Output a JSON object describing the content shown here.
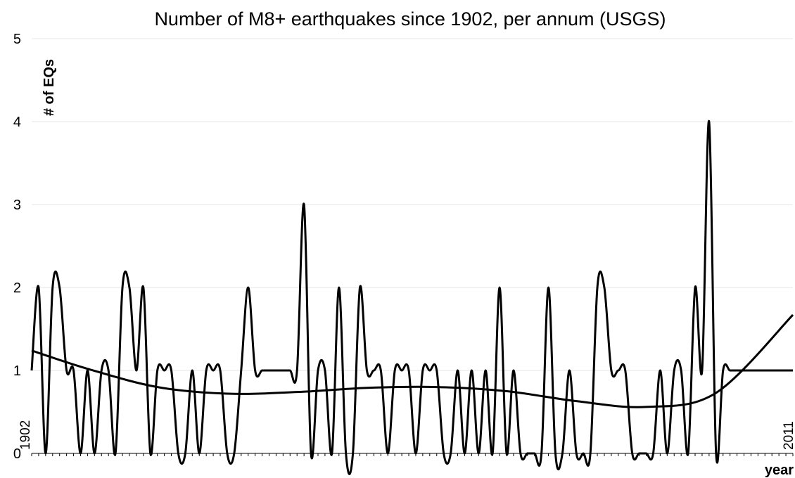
{
  "chart_data": {
    "type": "line",
    "title": "Number of M8+ earthquakes since 1902, per annum (USGS)",
    "xlabel": "year",
    "ylabel": "# of EQs",
    "x_start_label": "1902",
    "x_end_label": "2011",
    "xlim": [
      1902,
      2011
    ],
    "ylim": [
      0,
      5
    ],
    "yticks": [
      "0",
      "1",
      "2",
      "3",
      "4",
      "5"
    ],
    "grid": true,
    "legend": "none",
    "colors": {
      "series": "#000000",
      "trend": "#000000",
      "grid": "#e6e6e6"
    },
    "series": [
      {
        "x": [
          1902,
          1903,
          1904,
          1905,
          1906,
          1907,
          1908,
          1909,
          1910,
          1911,
          1912,
          1913,
          1914,
          1915,
          1916,
          1917,
          1918,
          1919,
          1920,
          1921,
          1922,
          1923,
          1924,
          1925,
          1926,
          1927,
          1928,
          1929,
          1930,
          1931,
          1932,
          1933,
          1934,
          1935,
          1936,
          1937,
          1938,
          1939,
          1940,
          1941,
          1942,
          1943,
          1944,
          1945,
          1946,
          1947,
          1948,
          1949,
          1950,
          1951,
          1952,
          1953,
          1954,
          1955,
          1956,
          1957,
          1958,
          1959,
          1960,
          1961,
          1962,
          1963,
          1964,
          1965,
          1966,
          1967,
          1968,
          1969,
          1970,
          1971,
          1972,
          1973,
          1974,
          1975,
          1976,
          1977,
          1978,
          1979,
          1980,
          1981,
          1982,
          1983,
          1984,
          1985,
          1986,
          1987,
          1988,
          1989,
          1990,
          1991,
          1992,
          1993,
          1994,
          1995,
          1996,
          1997,
          1998,
          1999,
          2000,
          2001,
          2002,
          2003,
          2004,
          2005,
          2006,
          2007,
          2008,
          2009,
          2010,
          2011
        ],
        "values": [
          1,
          2,
          0,
          2,
          2,
          1,
          1,
          0,
          1,
          0,
          1,
          1,
          0,
          2,
          2,
          1,
          2,
          0,
          1,
          1,
          1,
          0,
          0,
          1,
          0,
          1,
          1,
          1,
          0,
          0,
          1,
          2,
          1,
          1,
          1,
          1,
          1,
          1,
          1,
          3,
          0,
          1,
          1,
          0,
          2,
          0,
          0,
          2,
          1,
          1,
          1,
          0,
          1,
          1,
          1,
          0,
          1,
          1,
          1,
          0,
          0,
          1,
          0,
          1,
          0,
          1,
          0,
          2,
          0,
          1,
          0,
          0,
          0,
          0,
          2,
          0,
          0,
          1,
          0,
          0,
          0,
          2,
          2,
          1,
          1,
          1,
          0,
          0,
          0,
          0,
          1,
          0,
          1,
          1,
          0,
          2,
          1,
          4,
          0,
          1,
          1,
          1,
          1,
          1,
          1,
          1,
          1,
          1,
          1,
          1
        ]
      },
      {
        "x": [
          1902,
          1910,
          1920,
          1930,
          1940,
          1950,
          1960,
          1970,
          1980,
          1990,
          2000,
          2011
        ],
        "values": [
          1.24,
          1.02,
          0.8,
          0.72,
          0.74,
          0.79,
          0.8,
          0.75,
          0.63,
          0.56,
          0.73,
          1.67
        ]
      }
    ]
  }
}
